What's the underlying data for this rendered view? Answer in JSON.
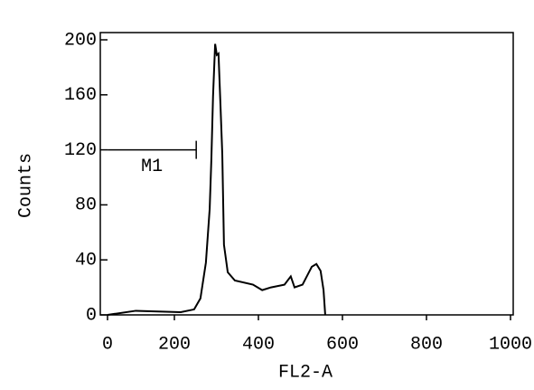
{
  "chart_data": {
    "type": "line",
    "x_label": "FL2-A",
    "y_label": "Counts",
    "x": [
      41,
      108,
      215,
      247,
      262,
      275,
      284,
      288,
      292,
      297,
      301,
      305,
      310,
      314,
      318,
      327,
      344,
      387,
      409,
      430,
      462,
      477,
      486,
      505,
      527,
      538,
      548,
      555,
      559
    ],
    "series": [
      {
        "color": "#000000",
        "values": [
          0,
          3,
          2,
          4,
          12,
          38,
          77,
          113,
          159,
          197,
          189,
          190,
          150,
          117,
          51,
          31,
          25,
          22,
          18,
          20,
          22,
          28,
          20,
          22,
          35,
          37,
          32,
          18,
          0
        ]
      }
    ],
    "marker": {
      "label": "M1",
      "range": [
        41,
        252
      ],
      "level": 120
    },
    "xlim": [
      0,
      1000
    ],
    "xticks": [
      0,
      200,
      400,
      600,
      800,
      1000
    ],
    "ylim": [
      0,
      200
    ],
    "yticks": [
      0,
      40,
      80,
      120,
      160,
      200
    ]
  }
}
